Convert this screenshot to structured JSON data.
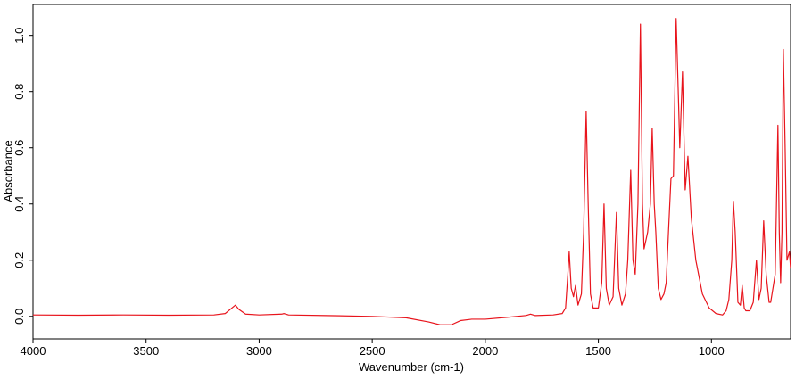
{
  "chart_data": {
    "type": "line",
    "x_label": "Wavenumber (cm-1)",
    "y_label": "Absorbance",
    "color": "#e8141c",
    "xlim": [
      4000,
      650
    ],
    "ylim": [
      -0.08,
      1.11
    ],
    "xticks": [
      4000,
      3500,
      3000,
      2500,
      2000,
      1500,
      1000
    ],
    "yticks": [
      {
        "value": 0,
        "label": "0.0"
      },
      0.2,
      0.4,
      0.6,
      0.8,
      {
        "value": 1,
        "label": "1.0"
      }
    ],
    "x": [
      4000,
      3800,
      3600,
      3400,
      3200,
      3150,
      3120,
      3105,
      3090,
      3060,
      3000,
      2900,
      2890,
      2870,
      2700,
      2500,
      2350,
      2250,
      2200,
      2150,
      2110,
      2060,
      2000,
      1900,
      1820,
      1800,
      1780,
      1700,
      1660,
      1645,
      1635,
      1629,
      1620,
      1610,
      1601,
      1590,
      1575,
      1565,
      1554,
      1545,
      1535,
      1523,
      1500,
      1485,
      1475,
      1465,
      1452,
      1435,
      1420,
      1410,
      1396,
      1380,
      1370,
      1357,
      1347,
      1337,
      1325,
      1314,
      1305,
      1298,
      1282,
      1270,
      1262,
      1253,
      1246,
      1235,
      1223,
      1210,
      1200,
      1190,
      1179,
      1168,
      1156,
      1145,
      1140,
      1128,
      1116,
      1104,
      1089,
      1069,
      1040,
      1010,
      980,
      951,
      935,
      923,
      910,
      903,
      895,
      883,
      872,
      864,
      855,
      848,
      830,
      815,
      801,
      790,
      780,
      769,
      758,
      745,
      738,
      730,
      718,
      706,
      700,
      694,
      688,
      682,
      674,
      666,
      655,
      650
    ],
    "values": [
      0.005,
      0.004,
      0.005,
      0.004,
      0.005,
      0.01,
      0.03,
      0.04,
      0.025,
      0.008,
      0.005,
      0.008,
      0.01,
      0.005,
      0.003,
      0.0,
      -0.005,
      -0.02,
      -0.03,
      -0.03,
      -0.015,
      -0.01,
      -0.01,
      -0.003,
      0.003,
      0.008,
      0.003,
      0.005,
      0.01,
      0.03,
      0.15,
      0.23,
      0.1,
      0.07,
      0.11,
      0.04,
      0.08,
      0.3,
      0.73,
      0.4,
      0.08,
      0.03,
      0.03,
      0.12,
      0.4,
      0.1,
      0.04,
      0.07,
      0.37,
      0.1,
      0.04,
      0.08,
      0.2,
      0.52,
      0.2,
      0.15,
      0.4,
      1.04,
      0.4,
      0.24,
      0.3,
      0.4,
      0.67,
      0.4,
      0.3,
      0.1,
      0.06,
      0.08,
      0.12,
      0.3,
      0.49,
      0.5,
      1.06,
      0.75,
      0.6,
      0.87,
      0.45,
      0.57,
      0.35,
      0.2,
      0.08,
      0.03,
      0.01,
      0.005,
      0.02,
      0.06,
      0.2,
      0.41,
      0.3,
      0.05,
      0.04,
      0.11,
      0.03,
      0.02,
      0.02,
      0.05,
      0.2,
      0.06,
      0.1,
      0.34,
      0.15,
      0.05,
      0.05,
      0.09,
      0.15,
      0.68,
      0.3,
      0.12,
      0.3,
      0.95,
      0.6,
      0.2,
      0.23,
      0.17
    ]
  }
}
